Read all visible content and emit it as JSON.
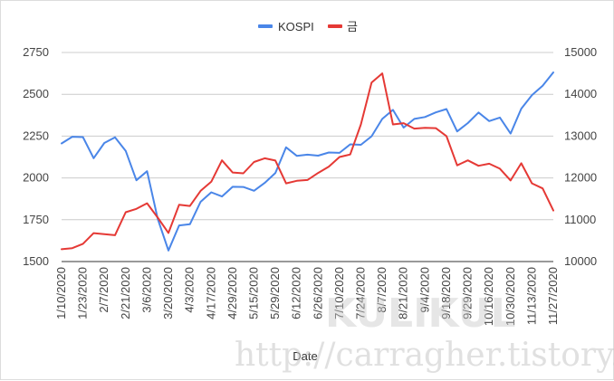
{
  "chart_data": {
    "type": "line",
    "xlabel": "Date",
    "y_left": {
      "min": 1500,
      "max": 2750,
      "ticks": [
        1500,
        1750,
        2000,
        2250,
        2500,
        2750
      ]
    },
    "y_right": {
      "min": 10000,
      "max": 15000,
      "ticks": [
        10000,
        11000,
        12000,
        13000,
        14000,
        15000
      ]
    },
    "x_tick_labels": [
      "1/10/2020",
      "1/23/2020",
      "2/7/2020",
      "2/21/2020",
      "3/6/2020",
      "3/20/2020",
      "4/3/2020",
      "4/17/2020",
      "4/29/2020",
      "5/15/2020",
      "5/29/2020",
      "6/12/2020",
      "6/26/2020",
      "7/10/2020",
      "7/24/2020",
      "8/7/2020",
      "8/21/2020",
      "9/4/2020",
      "9/18/2020",
      "9/29/2020",
      "10/16/2020",
      "10/30/2020",
      "11/13/2020",
      "11/27/2020"
    ],
    "x_tick_index": [
      0,
      2,
      4,
      6,
      8,
      10,
      12,
      14,
      16,
      18,
      20,
      22,
      24,
      26,
      28,
      30,
      32,
      34,
      36,
      38,
      40,
      42,
      44,
      46
    ],
    "legend_position": "top-center",
    "grid": true,
    "series": [
      {
        "name": "KOSPI",
        "axis": "left",
        "color": "#4a86e8",
        "values": [
          2206,
          2246,
          2244,
          2118,
          2209,
          2243,
          2162,
          1986,
          2040,
          1755,
          1566,
          1716,
          1723,
          1857,
          1914,
          1889,
          1947,
          1946,
          1923,
          1970,
          2030,
          2183,
          2132,
          2139,
          2133,
          2152,
          2150,
          2201,
          2198,
          2249,
          2353,
          2407,
          2301,
          2353,
          2364,
          2392,
          2412,
          2278,
          2328,
          2391,
          2340,
          2361,
          2265,
          2414,
          2495,
          2551,
          2631
        ]
      },
      {
        "name": "금",
        "axis": "right",
        "color": "#e53935",
        "values": [
          10295,
          10320,
          10425,
          10680,
          10655,
          10630,
          11180,
          11260,
          11395,
          11050,
          10685,
          11360,
          11330,
          11690,
          11910,
          12420,
          12130,
          12110,
          12380,
          12470,
          12415,
          11870,
          11930,
          11950,
          12120,
          12270,
          12500,
          12560,
          13280,
          14280,
          14500,
          13280,
          13310,
          13180,
          13200,
          13190,
          13000,
          12300,
          12420,
          12290,
          12340,
          12220,
          11940,
          12350,
          11870,
          11750,
          11220
        ]
      }
    ]
  },
  "watermark": {
    "text_big": "KULIKUL",
    "url": "http://carragher.tistory.com"
  }
}
